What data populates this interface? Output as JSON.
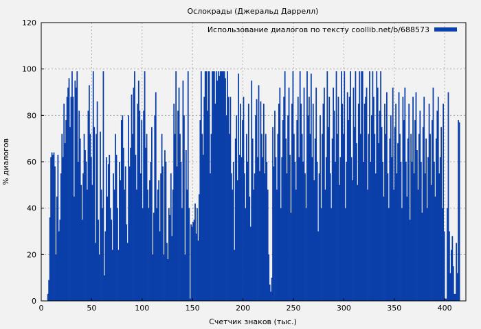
{
  "colors": {
    "background": "#f2f2f2",
    "bar": "#0a3ea8",
    "grid": "#9a9a9a",
    "axis": "#000000"
  },
  "chart_data": {
    "type": "bar",
    "title": "Ослокрады (Джеральд Даррелл)",
    "xlabel": "Счетчик знаков (тыс.)",
    "ylabel": "% диалогов",
    "xlim": [
      0,
      421
    ],
    "ylim": [
      0,
      120
    ],
    "xticks": [
      0,
      50,
      100,
      150,
      200,
      250,
      300,
      350,
      400
    ],
    "yticks": [
      0,
      20,
      40,
      60,
      80,
      100,
      120
    ],
    "grid": true,
    "legend_position": "top-right",
    "series": [
      {
        "name": "Использование диалогов по тексту coollib.net/b/688573",
        "x_start": 6,
        "x_step": 1,
        "values": [
          3,
          9,
          36,
          62,
          64,
          63,
          64,
          58,
          20,
          45,
          63,
          30,
          35,
          55,
          72,
          62,
          85,
          68,
          78,
          88,
          92,
          96,
          75,
          88,
          99,
          88,
          45,
          95,
          92,
          99,
          60,
          82,
          70,
          50,
          35,
          55,
          72,
          65,
          60,
          48,
          82,
          93,
          72,
          62,
          50,
          99,
          75,
          25,
          72,
          86,
          35,
          20,
          73,
          48,
          40,
          99,
          11,
          30,
          62,
          45,
          59,
          63,
          40,
          35,
          22,
          55,
          48,
          72,
          63,
          40,
          22,
          60,
          52,
          78,
          80,
          66,
          48,
          58,
          33,
          25,
          80,
          58,
          66,
          89,
          72,
          92,
          99,
          63,
          48,
          85,
          95,
          82,
          55,
          78,
          40,
          82,
          99,
          66,
          72,
          48,
          40,
          52,
          60,
          75,
          20,
          38,
          80,
          90,
          40,
          48,
          52,
          30,
          55,
          72,
          58,
          20,
          65,
          60,
          25,
          18,
          40,
          37,
          55,
          28,
          48,
          85,
          72,
          99,
          58,
          82,
          92,
          72,
          60,
          40,
          95,
          80,
          20,
          65,
          48,
          99,
          40,
          1,
          33,
          32,
          34,
          35,
          42,
          29,
          40,
          26,
          46,
          78,
          99,
          72,
          63,
          88,
          99,
          99,
          82,
          99,
          99,
          55,
          72,
          99,
          99,
          99,
          85,
          99,
          95,
          99,
          97,
          99,
          99,
          99,
          99,
          99,
          96,
          80,
          99,
          88,
          72,
          88,
          55,
          48,
          60,
          22,
          70,
          80,
          52,
          98,
          63,
          85,
          62,
          78,
          88,
          55,
          40,
          72,
          60,
          85,
          45,
          32,
          95,
          70,
          48,
          55,
          80,
          87,
          62,
          93,
          56,
          86,
          72,
          62,
          85,
          55,
          72,
          60,
          48,
          20,
          7,
          4,
          10,
          75,
          58,
          82,
          62,
          48,
          72,
          85,
          92,
          40,
          62,
          78,
          88,
          99,
          70,
          55,
          80,
          92,
          63,
          38,
          85,
          99,
          72,
          60,
          48,
          78,
          88,
          62,
          99,
          85,
          72,
          60,
          92,
          55,
          40,
          99,
          80,
          88,
          72,
          98,
          62,
          85,
          52,
          70,
          92,
          60,
          30,
          55,
          80,
          40,
          72,
          85,
          92,
          48,
          62,
          99,
          75,
          88,
          55,
          40,
          70,
          92,
          82,
          60,
          99,
          72,
          88,
          50,
          62,
          99,
          85,
          72,
          99,
          40,
          60,
          90,
          78,
          88,
          99,
          62,
          52,
          92,
          75,
          99,
          68,
          50,
          85,
          99,
          72,
          99,
          99,
          60,
          85,
          88,
          92,
          48,
          72,
          99,
          60,
          80,
          99,
          88,
          72,
          55,
          99,
          92,
          68,
          82,
          99,
          75,
          60,
          45,
          85,
          72,
          90,
          55,
          40,
          70,
          80,
          62,
          92,
          48,
          75,
          85,
          55,
          68,
          90,
          72,
          60,
          40,
          88,
          78,
          92,
          60,
          45,
          70,
          85,
          35,
          72,
          60,
          88,
          55,
          78,
          90,
          65,
          48,
          72,
          82,
          60,
          38,
          75,
          88,
          55,
          70,
          40,
          62,
          85,
          72,
          50,
          78,
          92,
          60,
          45,
          70,
          82,
          88,
          55,
          62,
          75,
          40,
          85,
          30,
          1,
          1,
          40,
          90,
          30,
          12,
          22,
          28,
          15,
          3,
          3,
          25,
          12,
          78,
          77
        ]
      }
    ]
  }
}
